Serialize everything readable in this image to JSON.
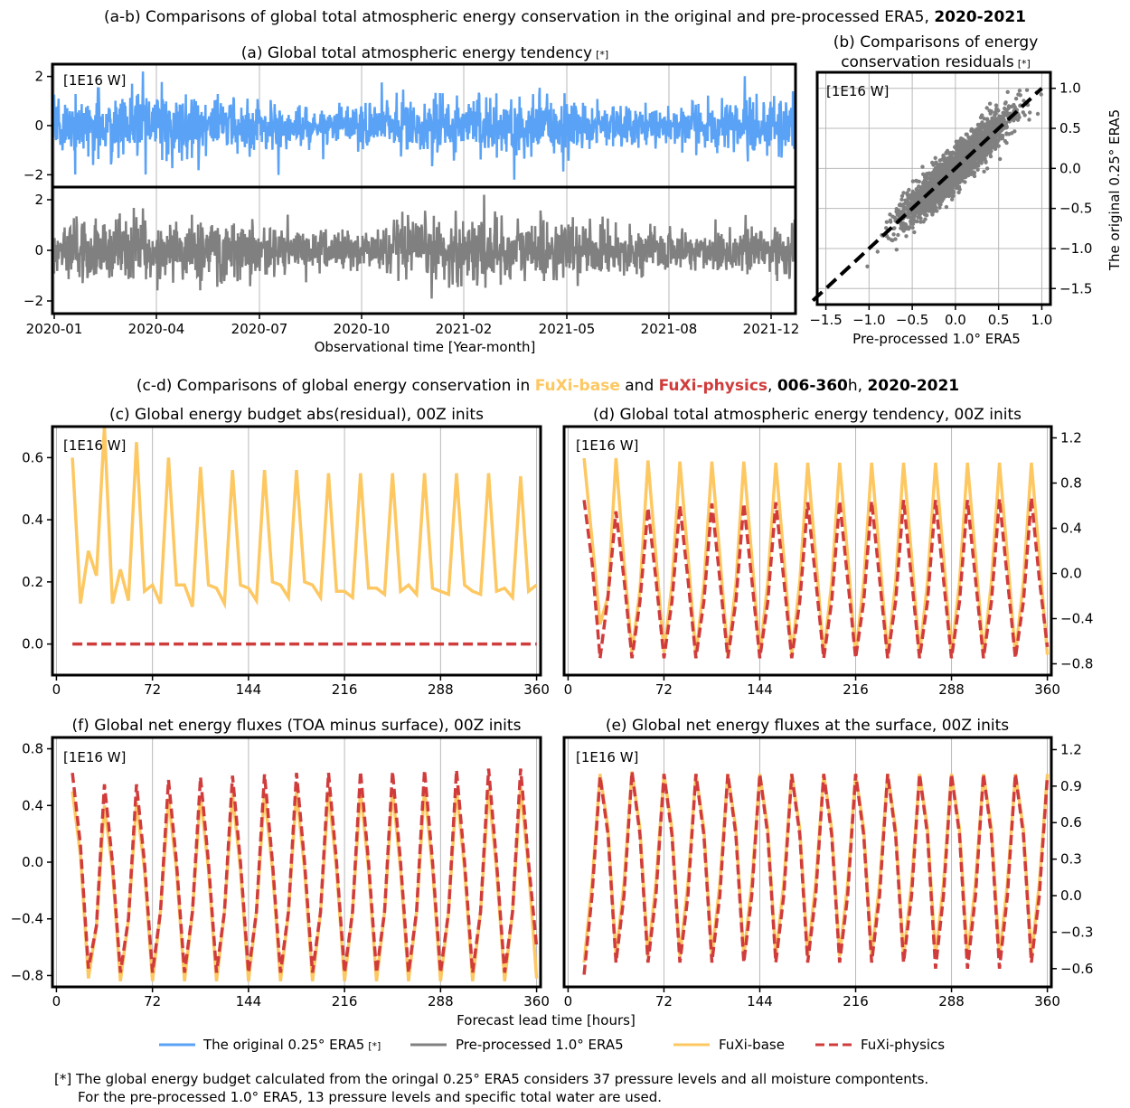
{
  "colors": {
    "era5_025": "#5aa2f6",
    "era5_10": "#808080",
    "fuxi_base": "#fdc862",
    "fuxi_physics": "#d03c3c"
  },
  "header_ab": {
    "title": "(a-b) Comparisons of global total atmospheric energy conservation in the original and pre-processed ERA5, ",
    "title_bold": "2020-2021"
  },
  "panel_a": {
    "title": "(a) Global total atmospheric energy tendency",
    "mark": "[*]",
    "unit": "[1E16 W]",
    "y_ticks": [
      "2",
      "0",
      "−2"
    ],
    "x_ticks": [
      "2020-01",
      "2020-04",
      "2020-07",
      "2020-10",
      "2021-02",
      "2021-05",
      "2021-08",
      "2021-12"
    ],
    "xlabel": "Observational time [Year-month]"
  },
  "panel_b": {
    "title_line1": "(b) Comparisons of energy",
    "title_line2": "conservation residuals",
    "mark": "[*]",
    "unit": "[1E16 W]",
    "x_ticks": [
      "−1.5",
      "−1.0",
      "−0.5",
      "0.0",
      "0.5",
      "1.0"
    ],
    "y_ticks": [
      "1.0",
      "0.5",
      "0.0",
      "−0.5",
      "−1.0",
      "−1.5"
    ],
    "xlabel": "Pre-processed 1.0° ERA5",
    "ylabel": "The original 0.25° ERA5"
  },
  "header_cd": {
    "prefix": "(c-d) Comparisons of global energy conservation in ",
    "base": "FuXi-base",
    "and": " and ",
    "physics": "FuXi-physics",
    "comma": ", ",
    "hours": "006-360",
    "h": "h, ",
    "years": "2020-2021"
  },
  "panel_c": {
    "title": "(c) Global energy budget abs(residual), 00Z inits",
    "unit": "[1E16 W]",
    "y_ticks": [
      "0.6",
      "0.4",
      "0.2",
      "0.0"
    ]
  },
  "panel_d": {
    "title": "(d) Global total atmospheric energy tendency, 00Z inits",
    "unit": "[1E16 W]",
    "y_ticks": [
      "1.2",
      "0.8",
      "0.4",
      "0.0",
      "−0.4",
      "−0.8"
    ]
  },
  "panel_f": {
    "title": "(f) Global net energy fluxes (TOA minus surface), 00Z inits",
    "unit": "[1E16 W]",
    "y_ticks": [
      "0.8",
      "0.4",
      "0.0",
      "−0.4",
      "−0.8"
    ]
  },
  "panel_e": {
    "title": "(e) Global net energy fluxes at the surface, 00Z inits",
    "unit": "[1E16 W]",
    "y_ticks": [
      "1.2",
      "0.9",
      "0.6",
      "0.3",
      "0.0",
      "−0.3",
      "−0.6"
    ]
  },
  "forecast_x_ticks": [
    "0",
    "72",
    "144",
    "216",
    "288",
    "360"
  ],
  "forecast_xlabel": "Forecast lead time [hours]",
  "legend": {
    "era5_025": "The original 0.25° ERA5",
    "era5_025_mark": "[*]",
    "era5_10": "Pre-processed 1.0° ERA5",
    "base": "FuXi-base",
    "physics": "FuXi-physics"
  },
  "footnote": {
    "line1": "[*] The global energy budget calculated from the oringal 0.25° ERA5 considers 37 pressure levels and all moisture compontents.",
    "line2": "For the pre-processed 1.0° ERA5, 13 pressure levels and specific total water are used."
  },
  "chart_data": [
    {
      "id": "a_top",
      "type": "line",
      "series": [
        {
          "name": "The original 0.25° ERA5",
          "description": "hourly noisy series centred near 0"
        }
      ],
      "ylim": [
        -2.5,
        2.5
      ],
      "x_range": [
        "2020-01",
        "2021-12"
      ]
    },
    {
      "id": "a_bottom",
      "type": "line",
      "series": [
        {
          "name": "Pre-processed 1.0° ERA5",
          "description": "hourly noisy series centred near 0"
        }
      ],
      "ylim": [
        -2.5,
        2.5
      ],
      "x_range": [
        "2020-01",
        "2021-12"
      ]
    },
    {
      "id": "b",
      "type": "scatter",
      "xlim": [
        -1.6,
        1.1
      ],
      "ylim": [
        -1.7,
        1.2
      ],
      "correlation": "strong positive along 1:1 line",
      "reference_line": "y = x",
      "n_points_approx": 2500
    },
    {
      "id": "c",
      "type": "line",
      "xlim": [
        -3,
        363
      ],
      "ylim": [
        -0.1,
        0.7
      ],
      "x": [
        12,
        18,
        24,
        30,
        36,
        42,
        48,
        54,
        60,
        66,
        72,
        78,
        84,
        90,
        96,
        102,
        108,
        114,
        120,
        126,
        132,
        138,
        144,
        150,
        156,
        162,
        168,
        174,
        180,
        186,
        192,
        198,
        204,
        210,
        216,
        222,
        228,
        234,
        240,
        246,
        252,
        258,
        264,
        270,
        276,
        282,
        288,
        294,
        300,
        306,
        312,
        318,
        324,
        330,
        336,
        342,
        348,
        354,
        360
      ],
      "series": [
        {
          "name": "FuXi-base",
          "values": [
            0.6,
            0.13,
            0.3,
            0.22,
            0.7,
            0.13,
            0.24,
            0.14,
            0.65,
            0.17,
            0.19,
            0.13,
            0.6,
            0.19,
            0.19,
            0.12,
            0.57,
            0.19,
            0.18,
            0.13,
            0.56,
            0.19,
            0.18,
            0.14,
            0.56,
            0.2,
            0.19,
            0.15,
            0.56,
            0.2,
            0.19,
            0.15,
            0.55,
            0.17,
            0.17,
            0.15,
            0.55,
            0.18,
            0.18,
            0.16,
            0.55,
            0.17,
            0.19,
            0.16,
            0.55,
            0.18,
            0.17,
            0.16,
            0.55,
            0.19,
            0.17,
            0.16,
            0.55,
            0.17,
            0.18,
            0.15,
            0.54,
            0.17,
            0.19
          ]
        },
        {
          "name": "FuXi-physics",
          "values": [
            0.0,
            0.0,
            0.0,
            0.0,
            0.0,
            0.0,
            0.0,
            0.0,
            0.0,
            0.0,
            0.0,
            0.0,
            0.0,
            0.0,
            0.0,
            0.0,
            0.0,
            0.0,
            0.0,
            0.0,
            0.0,
            0.0,
            0.0,
            0.0,
            0.0,
            0.0,
            0.0,
            0.0,
            0.0,
            0.0,
            0.0,
            0.0,
            0.0,
            0.0,
            0.0,
            0.0,
            0.0,
            0.0,
            0.0,
            0.0,
            0.0,
            0.0,
            0.0,
            0.0,
            0.0,
            0.0,
            0.0,
            0.0,
            0.0,
            0.0,
            0.0,
            0.0,
            0.0,
            0.0,
            0.0,
            0.0,
            0.0,
            0.0,
            0.0
          ]
        }
      ]
    },
    {
      "id": "d",
      "type": "line",
      "xlim": [
        -3,
        363
      ],
      "ylim": [
        -0.9,
        1.3
      ],
      "x_start": 12,
      "x_step": 6,
      "series": [
        {
          "name": "FuXi-base",
          "values": [
            1.02,
            0.3,
            -0.45,
            -0.2,
            1.02,
            0.1,
            -0.7,
            -0.15,
            1.0,
            0.15,
            -0.7,
            -0.1,
            0.99,
            0.15,
            -0.72,
            -0.1,
            0.99,
            0.15,
            -0.72,
            -0.1,
            0.99,
            0.15,
            -0.72,
            -0.08,
            0.98,
            0.15,
            -0.72,
            -0.08,
            0.98,
            0.15,
            -0.72,
            -0.08,
            0.98,
            0.15,
            -0.72,
            -0.08,
            0.98,
            0.15,
            -0.72,
            -0.08,
            0.98,
            0.15,
            -0.72,
            -0.08,
            0.98,
            0.15,
            -0.72,
            -0.08,
            0.98,
            0.15,
            -0.72,
            -0.08,
            0.98,
            0.15,
            -0.72,
            -0.08,
            0.98,
            0.15,
            -0.72
          ]
        },
        {
          "name": "FuXi-physics",
          "values": [
            0.65,
            0.1,
            -0.75,
            -0.2,
            0.55,
            -0.05,
            -0.75,
            -0.25,
            0.58,
            -0.05,
            -0.75,
            -0.25,
            0.6,
            -0.05,
            -0.75,
            -0.25,
            0.62,
            -0.05,
            -0.75,
            -0.25,
            0.62,
            -0.05,
            -0.75,
            -0.25,
            0.63,
            -0.05,
            -0.75,
            -0.25,
            0.63,
            -0.05,
            -0.75,
            -0.25,
            0.64,
            -0.05,
            -0.75,
            -0.25,
            0.64,
            -0.05,
            -0.75,
            -0.25,
            0.65,
            -0.05,
            -0.75,
            -0.25,
            0.65,
            -0.05,
            -0.75,
            -0.25,
            0.65,
            -0.05,
            -0.75,
            -0.25,
            0.66,
            -0.05,
            -0.75,
            -0.25,
            0.67,
            -0.05,
            -0.65
          ]
        }
      ]
    },
    {
      "id": "f",
      "type": "line",
      "xlim": [
        -3,
        363
      ],
      "ylim": [
        -0.88,
        0.88
      ],
      "x_start": 12,
      "x_step": 6,
      "series": [
        {
          "name": "FuXi-base",
          "values": [
            0.5,
            0.05,
            -0.82,
            -0.45,
            0.4,
            -0.05,
            -0.84,
            -0.4,
            0.42,
            -0.05,
            -0.84,
            -0.35,
            0.45,
            -0.05,
            -0.84,
            -0.35,
            0.47,
            -0.05,
            -0.84,
            -0.35,
            0.48,
            -0.05,
            -0.84,
            -0.35,
            0.49,
            -0.05,
            -0.84,
            -0.35,
            0.5,
            -0.05,
            -0.84,
            -0.35,
            0.5,
            -0.05,
            -0.84,
            -0.35,
            0.51,
            -0.05,
            -0.84,
            -0.35,
            0.51,
            -0.05,
            -0.84,
            -0.35,
            0.52,
            -0.05,
            -0.84,
            -0.35,
            0.52,
            -0.05,
            -0.84,
            -0.35,
            0.52,
            -0.05,
            -0.84,
            -0.35,
            0.53,
            -0.05,
            -0.82
          ]
        },
        {
          "name": "FuXi-physics",
          "values": [
            0.63,
            0.12,
            -0.75,
            -0.45,
            0.55,
            0.0,
            -0.78,
            -0.4,
            0.55,
            0.0,
            -0.78,
            -0.35,
            0.58,
            0.0,
            -0.78,
            -0.35,
            0.6,
            0.0,
            -0.78,
            -0.35,
            0.61,
            0.0,
            -0.78,
            -0.35,
            0.62,
            0.0,
            -0.78,
            -0.35,
            0.63,
            0.0,
            -0.78,
            -0.35,
            0.63,
            0.0,
            -0.78,
            -0.35,
            0.64,
            0.0,
            -0.78,
            -0.35,
            0.64,
            0.0,
            -0.78,
            -0.35,
            0.65,
            0.0,
            -0.78,
            -0.35,
            0.65,
            0.0,
            -0.78,
            -0.35,
            0.66,
            0.0,
            -0.78,
            -0.35,
            0.66,
            0.0,
            -0.6
          ]
        }
      ]
    },
    {
      "id": "e",
      "type": "line",
      "xlim": [
        -3,
        363
      ],
      "ylim": [
        -0.75,
        1.3
      ],
      "x_start": 12,
      "x_step": 6,
      "series": [
        {
          "name": "FuXi-base",
          "values": [
            -0.55,
            0.1,
            1.0,
            0.55,
            -0.5,
            0.1,
            1.02,
            0.55,
            -0.5,
            0.1,
            1.0,
            0.55,
            -0.5,
            0.1,
            1.0,
            0.55,
            -0.5,
            0.1,
            1.0,
            0.55,
            -0.5,
            0.1,
            1.0,
            0.55,
            -0.5,
            0.1,
            1.0,
            0.55,
            -0.5,
            0.1,
            1.0,
            0.55,
            -0.5,
            0.1,
            1.0,
            0.55,
            -0.5,
            0.1,
            1.0,
            0.55,
            -0.5,
            0.1,
            1.0,
            0.55,
            -0.5,
            0.1,
            1.0,
            0.55,
            -0.5,
            0.1,
            1.0,
            0.55,
            -0.5,
            0.1,
            1.0,
            0.55,
            -0.5,
            0.1,
            1.0
          ]
        },
        {
          "name": "FuXi-physics",
          "values": [
            -0.65,
            0.0,
            0.98,
            0.5,
            -0.55,
            0.0,
            1.02,
            0.5,
            -0.55,
            0.0,
            1.0,
            0.5,
            -0.55,
            0.0,
            1.0,
            0.5,
            -0.55,
            0.0,
            1.0,
            0.5,
            -0.55,
            0.0,
            1.0,
            0.5,
            -0.55,
            0.0,
            1.0,
            0.5,
            -0.55,
            0.0,
            1.0,
            0.5,
            -0.55,
            0.0,
            1.0,
            0.5,
            -0.55,
            0.0,
            1.0,
            0.5,
            -0.55,
            0.0,
            1.0,
            0.5,
            -0.6,
            0.0,
            1.0,
            0.5,
            -0.6,
            0.0,
            1.0,
            0.5,
            -0.6,
            0.0,
            1.0,
            0.5,
            -0.55,
            0.0,
            0.98
          ]
        }
      ]
    }
  ]
}
